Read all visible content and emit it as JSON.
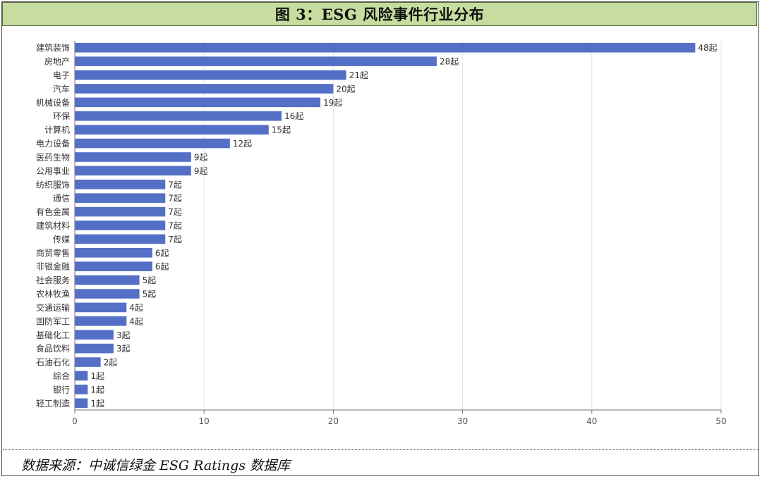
{
  "title": "图 3：ESG 风险事件行业分布",
  "source": "数据来源：中诚信绿金 ESG Ratings 数据库",
  "chart_data": {
    "type": "bar",
    "orientation": "horizontal",
    "title": "",
    "xlabel": "",
    "ylabel": "",
    "xlim": [
      0,
      50
    ],
    "x_ticks": [
      "0",
      "10",
      "20",
      "30",
      "40",
      "50"
    ],
    "grid": true,
    "bar_color": "#5470c6",
    "value_suffix": "起",
    "categories": [
      "建筑装饰",
      "房地产",
      "电子",
      "汽车",
      "机械设备",
      "环保",
      "计算机",
      "电力设备",
      "医药生物",
      "公用事业",
      "纺织服饰",
      "通信",
      "有色金属",
      "建筑材料",
      "传媒",
      "商贸零售",
      "非银金融",
      "社会服务",
      "农林牧渔",
      "交通运输",
      "国防军工",
      "基础化工",
      "食品饮料",
      "石油石化",
      "综合",
      "银行",
      "轻工制造"
    ],
    "values": [
      48,
      28,
      21,
      20,
      19,
      16,
      15,
      12,
      9,
      9,
      7,
      7,
      7,
      7,
      7,
      6,
      6,
      5,
      5,
      4,
      4,
      3,
      3,
      2,
      1,
      1,
      1
    ],
    "value_labels": [
      "48起",
      "28起",
      "21起",
      "20起",
      "19起",
      "16起",
      "15起",
      "12起",
      "9起",
      "9起",
      "7起",
      "7起",
      "7起",
      "7起",
      "7起",
      "6起",
      "6起",
      "5起",
      "5起",
      "4起",
      "4起",
      "3起",
      "3起",
      "2起",
      "1起",
      "1起",
      "1起"
    ]
  }
}
